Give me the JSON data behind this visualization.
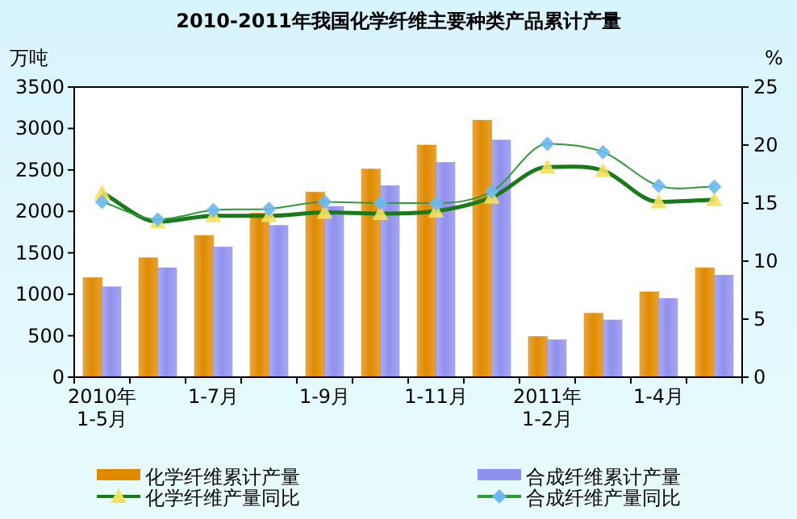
{
  "chart_data": {
    "type": "bar",
    "title": "2010-2011年我国化学纤维主要种类产品累计产量",
    "ylabel": "万吨",
    "y2label": "%",
    "categories": [
      "2010年\n1-5月",
      null,
      "1-7月",
      null,
      "1-9月",
      null,
      "1-11月",
      null,
      "2011年\n1-2月",
      null,
      "1-4月",
      null
    ],
    "series": [
      {
        "name": "化学纤维累计产量",
        "color": "#e08a00",
        "values": [
          1200,
          1440,
          1710,
          1980,
          2230,
          2510,
          2800,
          3100,
          490,
          770,
          1030,
          1320
        ]
      },
      {
        "name": "合成纤维累计产量",
        "color": "#9090ee",
        "values": [
          1090,
          1320,
          1570,
          1830,
          2060,
          2310,
          2590,
          2860,
          450,
          690,
          950,
          1230
        ]
      },
      {
        "name": "化学纤维产量同比",
        "type": "line",
        "axis": "y2",
        "color": "#1a7a1a",
        "marker": "triangle",
        "values": [
          15.9,
          13.4,
          13.9,
          13.9,
          14.2,
          14.1,
          14.3,
          15.5,
          18.1,
          17.8,
          15.1,
          15.3
        ]
      },
      {
        "name": "合成纤维产量同比",
        "type": "line",
        "axis": "y2",
        "color": "#2f9a3a",
        "marker": "diamond",
        "values": [
          15.1,
          13.6,
          14.4,
          14.5,
          15.1,
          15.0,
          15.0,
          16.0,
          20.1,
          19.4,
          16.5,
          16.4
        ]
      }
    ],
    "ylim": [
      0,
      3500
    ],
    "yticks": [
      0,
      500,
      1000,
      1500,
      2000,
      2500,
      3000,
      3500
    ],
    "y2lim": [
      0,
      25
    ],
    "y2ticks": [
      0,
      5,
      10,
      15,
      20,
      25
    ],
    "grid": false,
    "legend": "bottom"
  }
}
